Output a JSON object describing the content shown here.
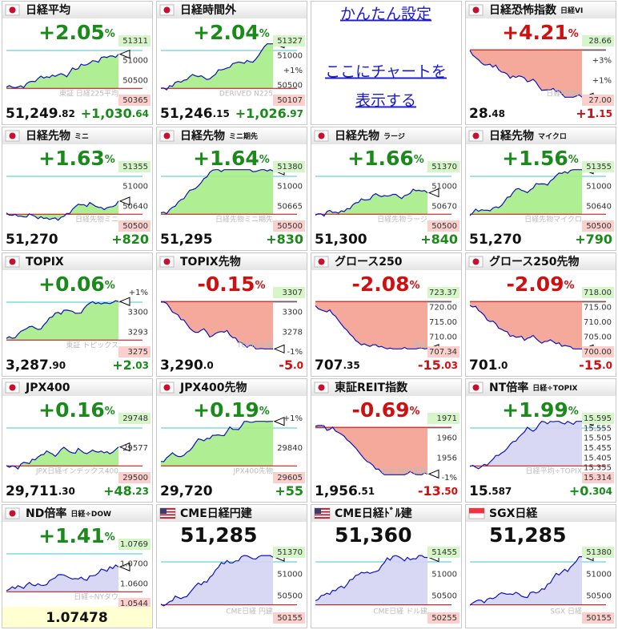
{
  "tiles": [
    {
      "title": "日経平均",
      "flag": "jp",
      "pct": "+2.05",
      "unit": "%",
      "price_int": "51,249",
      "price_dec": ".82",
      "chg_int": "+1,030",
      "chg_dec": ".64",
      "color": "#1a8a1a",
      "axis": [
        "51311",
        "51000",
        "50500",
        "50365"
      ],
      "watermark": "東証 日経225平均"
    },
    {
      "title": "日経時間外",
      "flag": "jp",
      "pct": "+2.04",
      "unit": "%",
      "price_int": "51,246",
      "price_dec": ".15",
      "chg_int": "+1,026",
      "chg_dec": ".97",
      "color": "#1a8a1a",
      "axis": [
        "51327",
        "51000",
        "+1%",
        "50500",
        "50107"
      ],
      "watermark": "DERIVED N225"
    },
    {
      "links": [
        "かんたん設定",
        "ここにチャートを",
        "表示する"
      ]
    },
    {
      "title": "日経恐怖指数",
      "sub": "日経VI",
      "flag": "jp",
      "pct": "+4.21",
      "unit": "%",
      "price_int": "28",
      "price_dec": ".48",
      "chg_int": "+1",
      "chg_dec": ".15",
      "color": "#d01010",
      "axis": [
        "28.66",
        "+3%",
        "+1%",
        "27.00"
      ],
      "watermark": "日経平均VI"
    },
    {
      "title": "日経先物",
      "sub": "ミニ",
      "flag": "jp",
      "pct": "+1.63",
      "unit": "%",
      "price_int": "51,270",
      "chg_int": "+820",
      "color": "#1a8a1a",
      "axis": [
        "51355",
        "51000",
        "50640",
        "50500"
      ],
      "watermark": "日経先物ミニ"
    },
    {
      "title": "日経先物",
      "sub": "ミニ期先",
      "flag": "jp",
      "pct": "+1.64",
      "unit": "%",
      "price_int": "51,295",
      "chg_int": "+830",
      "color": "#1a8a1a",
      "axis": [
        "51380",
        "51000",
        "50665",
        "50500"
      ],
      "watermark": "日経先物ミニ期先"
    },
    {
      "title": "日経先物",
      "sub": "ラージ",
      "flag": "jp",
      "pct": "+1.66",
      "unit": "%",
      "price_int": "51,300",
      "chg_int": "+840",
      "color": "#1a8a1a",
      "axis": [
        "51370",
        "51000",
        "50670",
        "50500"
      ],
      "watermark": "日経先物ラージ"
    },
    {
      "title": "日経先物",
      "sub": "マイクロ",
      "flag": "jp",
      "pct": "+1.56",
      "unit": "%",
      "price_int": "51,270",
      "chg_int": "+790",
      "color": "#1a8a1a",
      "axis": [
        "51355",
        "51000",
        "50640",
        "50500"
      ],
      "watermark": "日経先物マイクロ"
    },
    {
      "title": "TOPIX",
      "flag": "jp",
      "pct": "+0.06",
      "unit": "%",
      "price_int": "3,287",
      "price_dec": ".90",
      "chg_int": "+2",
      "chg_dec": ".03",
      "color": "#1a8a1a",
      "axis": [
        "+1%",
        "3300",
        "3293",
        "3275"
      ],
      "watermark": "東証 トピックス"
    },
    {
      "title": "TOPIX先物",
      "flag": "jp",
      "pct": "-0.15",
      "unit": "%",
      "price_int": "3,290",
      "price_dec": ".0",
      "chg_int": "-5",
      "chg_dec": ".0",
      "color": "#d01010",
      "axis": [
        "3307",
        "3300",
        "3278",
        "-1%"
      ],
      "watermark": "TOPIX先物"
    },
    {
      "title": "グロース250",
      "flag": "jp",
      "pct": "-2.08",
      "unit": "%",
      "price_int": "707",
      "price_dec": ".35",
      "chg_int": "-15",
      "chg_dec": ".03",
      "color": "#d01010",
      "axis": [
        "723.37",
        "720.00",
        "715.00",
        "710.00",
        "707.34"
      ],
      "watermark": "東証"
    },
    {
      "title": "グロース250先物",
      "flag": "jp",
      "pct": "-2.09",
      "unit": "%",
      "price_int": "701",
      "price_dec": ".0",
      "chg_int": "-15",
      "chg_dec": ".0",
      "color": "#d01010",
      "axis": [
        "718.00",
        "715.00",
        "710.00",
        "705.00",
        "700.00"
      ]
    },
    {
      "title": "JPX400",
      "flag": "jp",
      "pct": "+0.16",
      "unit": "%",
      "price_int": "29,711",
      "price_dec": ".30",
      "chg_int": "+48",
      "chg_dec": ".23",
      "color": "#1a8a1a",
      "axis": [
        "29748",
        "29577",
        "29500"
      ],
      "watermark": "JPX日経インデックス400"
    },
    {
      "title": "JPX400先物",
      "flag": "jp",
      "pct": "+0.19",
      "unit": "%",
      "price_int": "29,720",
      "chg_int": "+55",
      "color": "#1a8a1a",
      "axis": [
        "+1%",
        "29840",
        "29605"
      ],
      "watermark": "JPX400先物"
    },
    {
      "title": "東証REIT指数",
      "flag": "jp",
      "pct": "-0.69",
      "unit": "%",
      "price_int": "1,956",
      "price_dec": ".51",
      "chg_int": "-13",
      "chg_dec": ".50",
      "color": "#d01010",
      "axis": [
        "1971",
        "1960",
        "1956",
        "-1%"
      ],
      "watermark": "東証 REIT指数"
    },
    {
      "title": "NT倍率",
      "sub": "日経÷TOPIX",
      "flag": "jp",
      "pct": "+1.99",
      "unit": "%",
      "price_int": "15",
      "price_dec": ".587",
      "chg_int": "+0",
      "chg_dec": ".304",
      "color": "#1a8a1a",
      "axis": [
        "15.595",
        "15.555",
        "15.505",
        "15.455",
        "15.405",
        "15.355",
        "15.314"
      ],
      "watermark": "日経平均÷TOPIX"
    },
    {
      "title": "ND倍率",
      "sub": "日経÷DOW",
      "flag": "jp",
      "pct": "+1.41",
      "unit": "%",
      "price_full": "1.07478",
      "color": "#1a8a1a",
      "axis": [
        "1.0769",
        "1.0700",
        "1.0600",
        "1.0544"
      ],
      "watermark": "日経÷NYダウ"
    },
    {
      "title": "CME日経円建",
      "flag": "us",
      "price_big": "51,285",
      "color": "#1a8a1a",
      "axis": [
        "51370",
        "51000",
        "50500",
        "50155"
      ],
      "watermark": "CME日経 円建"
    },
    {
      "title": "CME日経ﾄﾞﾙ建",
      "flag": "us",
      "price_big": "51,360",
      "color": "#1a8a1a",
      "axis": [
        "51455",
        "51000",
        "50500",
        "50255"
      ],
      "watermark": "CME日経 ドル建"
    },
    {
      "title": "SGX日経",
      "flag": "sg",
      "price_big": "51,285",
      "color": "#1a8a1a",
      "axis": [
        "51380",
        "51000",
        "50500",
        "50155"
      ],
      "watermark": "SGX 日経"
    }
  ]
}
